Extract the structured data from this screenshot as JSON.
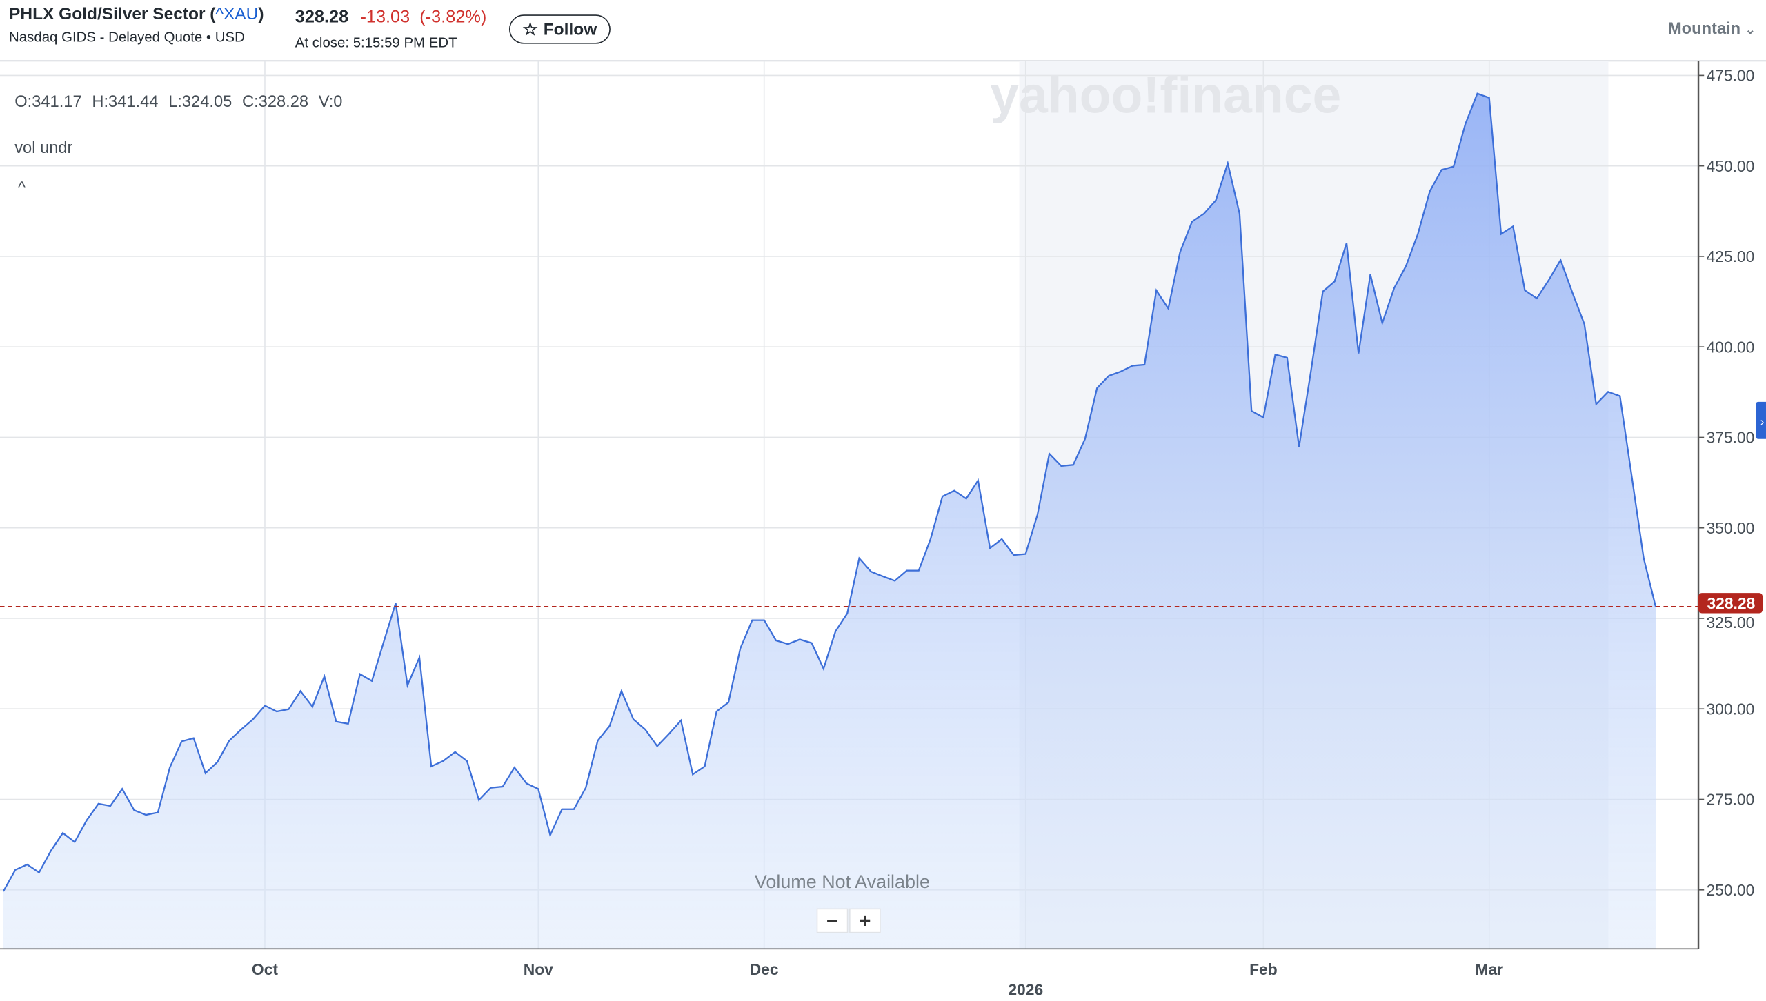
{
  "header": {
    "name": "PHLX Gold/Silver Sector (",
    "symbol": "^XAU",
    "name_close": ")",
    "exchange": "Nasdaq GIDS - Delayed Quote • USD",
    "price": "328.28",
    "change": "-13.03",
    "change_pct": "(-3.82%)",
    "at_close": "At close: 5:15:59 PM EDT",
    "follow_label": "Follow",
    "chart_type": "Mountain"
  },
  "legend": {
    "open": "O:341.17",
    "high": "H:341.44",
    "low": "L:324.05",
    "close": "C:328.28",
    "volume": "V:0",
    "indicator": "vol undr",
    "collapse": "^"
  },
  "volume_note": "Volume Not Available",
  "zoom": {
    "minus": "−",
    "plus": "+"
  },
  "watermark": "yahoo!finance",
  "colors": {
    "line": "#3d6fd8",
    "negative": "#d0312d",
    "price_tag": "#b3261e",
    "accent": "#1a5fd1"
  },
  "chart_data": {
    "type": "area",
    "ylim": [
      235,
      478
    ],
    "y_ticks": [
      "250.00",
      "275.00",
      "300.00",
      "325.00",
      "350.00",
      "375.00",
      "400.00",
      "425.00",
      "450.00",
      "475.00"
    ],
    "x_ticks": [
      {
        "label": "Oct",
        "at_point": 22
      },
      {
        "label": "Nov",
        "at_point": 45
      },
      {
        "label": "Dec",
        "at_point": 64
      },
      {
        "label": "2026",
        "at_point": 86
      },
      {
        "label": "Feb",
        "at_point": 106
      },
      {
        "label": "Mar",
        "at_point": 125
      }
    ],
    "last_price_label": "328.28",
    "last_price": 328.28,
    "grid": true,
    "values": [
      249.6,
      255.5,
      257,
      254.8,
      260.8,
      265.7,
      263.2,
      269.2,
      273.8,
      273.2,
      277.9,
      272,
      270.7,
      271.4,
      283.8,
      291,
      291.9,
      282.2,
      285.3,
      291.2,
      294.3,
      297.1,
      300.9,
      299.3,
      299.9,
      304.9,
      300.6,
      309,
      296.5,
      295.9,
      309.6,
      307.7,
      318.5,
      329.2,
      306.5,
      314.2,
      284.1,
      285.6,
      288.1,
      285.6,
      274.8,
      278.2,
      278.5,
      283.8,
      279.4,
      277.9,
      265.1,
      272.3,
      272.3,
      278.2,
      291.2,
      295.3,
      304.9,
      297.1,
      294.3,
      289.7,
      293.1,
      296.8,
      281.9,
      284.1,
      299.3,
      301.8,
      316.7,
      324.5,
      324.5,
      318.9,
      317.9,
      319.2,
      318.2,
      311.1,
      321.4,
      326.4,
      341.6,
      337.9,
      336.6,
      335.4,
      338.2,
      338.2,
      346.9,
      358.7,
      360.3,
      358.1,
      363.1,
      344.4,
      346.9,
      342.5,
      342.8,
      353.7,
      370.5,
      367.1,
      367.4,
      374.6,
      388.6,
      392,
      393.2,
      394.8,
      395.1,
      415.6,
      410.6,
      426.2,
      434.6,
      436.8,
      440.5,
      450.7,
      436.8,
      382.3,
      380.5,
      397.9,
      397,
      372.4,
      393.2,
      415.3,
      418.1,
      428.7,
      398.2,
      420,
      406.6,
      416.2,
      422.4,
      431.2,
      443,
      448.9,
      449.8,
      461.6,
      470,
      468.8,
      431.2,
      433.3,
      415.6,
      413.4,
      418.4,
      424,
      415,
      406.3,
      384.2,
      387.6,
      386.4,
      364,
      341.6,
      328.28
    ]
  }
}
